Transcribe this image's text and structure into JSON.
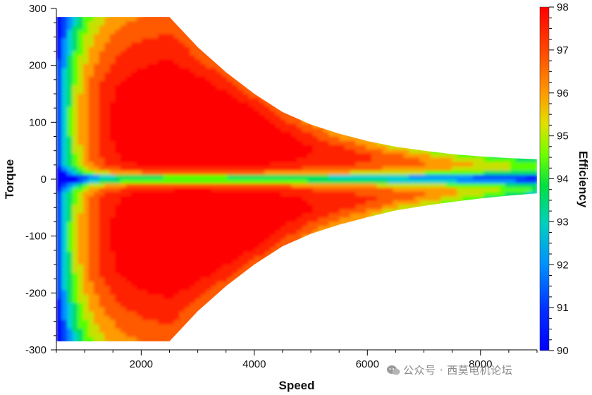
{
  "chart_data": {
    "type": "heatmap",
    "subtype": "filled-contour efficiency map",
    "xlabel": "Speed",
    "ylabel": "Torque",
    "colorbar_label": "Efficiency",
    "xlim": [
      500,
      9000
    ],
    "ylim": [
      -300,
      300
    ],
    "x_ticks": [
      2000,
      4000,
      6000,
      8000
    ],
    "y_ticks": [
      300,
      200,
      100,
      0,
      -100,
      -200,
      -300
    ],
    "colorbar_range": [
      90,
      98
    ],
    "colorbar_ticks": [
      98,
      97,
      96,
      95,
      94,
      93,
      92,
      91,
      90
    ],
    "colormap": [
      "#0000ff",
      "#0044ff",
      "#0090ff",
      "#00d0d0",
      "#00e060",
      "#55ff00",
      "#c8e000",
      "#ff9a00",
      "#ff5a00",
      "#ff2000",
      "#ff0000"
    ],
    "envelope": {
      "speed": [
        500,
        2500,
        3000,
        3500,
        4000,
        4500,
        5000,
        5500,
        6000,
        6500,
        7000,
        7500,
        8000,
        8500,
        9000
      ],
      "max_torque": [
        285,
        285,
        232,
        188,
        150,
        118,
        96,
        80,
        67,
        57,
        50,
        44,
        40,
        37,
        35
      ],
      "min_torque": [
        -285,
        -285,
        -232,
        -188,
        -150,
        -118,
        -96,
        -80,
        -67,
        -55,
        -47,
        -40,
        -34,
        -29,
        -25
      ]
    },
    "efficiency_regions": [
      {
        "level": 98,
        "speed_range": [
          1800,
          4700
        ],
        "torque_range": [
          50,
          170
        ]
      },
      {
        "level": 98,
        "speed_range": [
          1800,
          4700
        ],
        "torque_range": [
          -170,
          -50
        ]
      },
      {
        "level": 90,
        "speed_range": [
          500,
          9000
        ],
        "torque_range": [
          -8,
          8
        ]
      }
    ],
    "grid": false,
    "colorbar_position": "right"
  },
  "watermark": {
    "text": "公众号 · 西莫电机论坛"
  }
}
